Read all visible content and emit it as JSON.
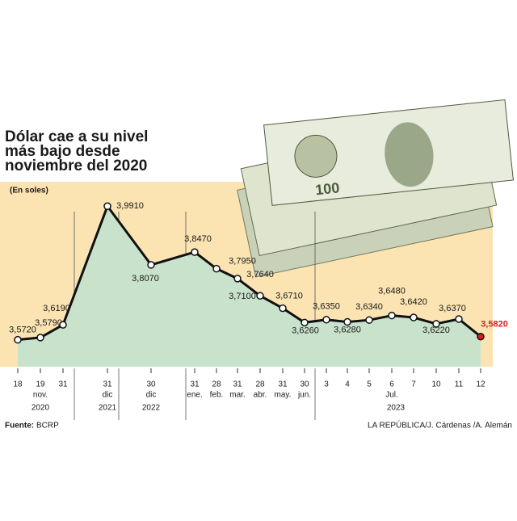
{
  "chart_data": {
    "type": "line",
    "title": [
      "Dólar cae a su nivel",
      "más bajo desde",
      "noviembre del 2020"
    ],
    "subtitle": "(En soles)",
    "categories": [
      "18",
      "19",
      "31",
      "31",
      "30",
      "31",
      "28",
      "31",
      "28",
      "31",
      "30",
      "3",
      "4",
      "5",
      "6",
      "7",
      "10",
      "11",
      "12"
    ],
    "month_labels": [
      null,
      "nov.",
      null,
      "dic",
      "dic",
      "ene.",
      "feb.",
      "mar.",
      "abr.",
      "may.",
      "jun.",
      null,
      null,
      null,
      "Jul.",
      null,
      null,
      null,
      null
    ],
    "year_labels": [
      null,
      "2020",
      null,
      "2021",
      "2022",
      null,
      null,
      null,
      null,
      null,
      null,
      null,
      null,
      null,
      "2023",
      null,
      null,
      null,
      null
    ],
    "values": [
      3.572,
      3.579,
      3.619,
      3.991,
      3.807,
      3.847,
      3.795,
      3.764,
      3.71,
      3.671,
      3.626,
      3.635,
      3.628,
      3.634,
      3.648,
      3.642,
      3.622,
      3.637,
      3.582
    ],
    "value_labels": [
      "3,5720",
      "3,5790",
      "3,6190",
      "3,9910",
      "3,8070",
      "3,8470",
      "3,7950",
      "3,7640",
      "3,7100",
      "3,6710",
      "3,6260",
      "3,6350",
      "3,6280",
      "3,6340",
      "3,6480",
      "3,6420",
      "3,6220",
      "3,6370",
      "3,5820"
    ],
    "ylim": [
      3.485,
      4.05
    ],
    "color": "#111111",
    "area_color": "#c9e2cb",
    "background_color": "#fbe3b2",
    "highlight_color": "#d81e1e",
    "source_label": "Fuente:",
    "source": "BCRP",
    "credit": "LA REPÚBLICA/J. Cárdenas /A. Alemán"
  }
}
